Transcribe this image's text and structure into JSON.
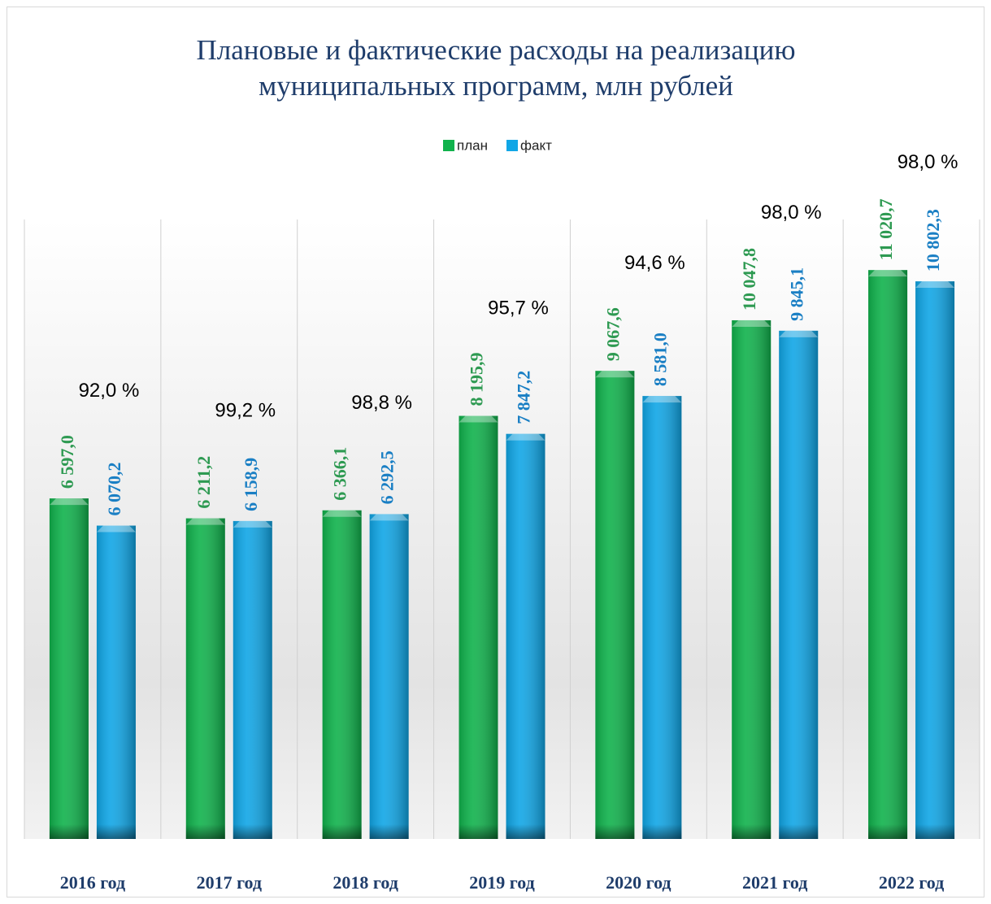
{
  "chart_data": {
    "type": "bar",
    "title": "Плановые и фактические расходы на реализацию муниципальных программ, млн рублей",
    "categories": [
      "2016 год",
      "2017 год",
      "2018 год",
      "2019 год",
      "2020 год",
      "2021 год",
      "2022 год"
    ],
    "series": [
      {
        "name": "план",
        "color": "#10b24c",
        "label_color": "#2e9a52",
        "values": [
          6597.0,
          6211.2,
          6366.1,
          8195.9,
          9067.6,
          10047.8,
          11020.7
        ],
        "value_labels": [
          "6 597,0",
          "6 211,2",
          "6 366,1",
          "8 195,9",
          "9 067,6",
          "10 047,8",
          "11 020,7"
        ]
      },
      {
        "name": "факт",
        "color": "#10a6e6",
        "label_color": "#1a7fc4",
        "values": [
          6070.2,
          6158.9,
          6292.5,
          7847.2,
          8581.0,
          9845.1,
          10802.3
        ],
        "value_labels": [
          "6 070,2",
          "6 158,9",
          "6 292,5",
          "7 847,2",
          "8 581,0",
          "9 845,1",
          "10 802,3"
        ]
      }
    ],
    "annotations": [
      "92,0 %",
      "99,2 %",
      "98,8 %",
      "95,7 %",
      "94,6 %",
      "98,0 %",
      "98,0 %"
    ],
    "ylim": [
      0,
      12000
    ],
    "grid": true,
    "legend": "top"
  }
}
